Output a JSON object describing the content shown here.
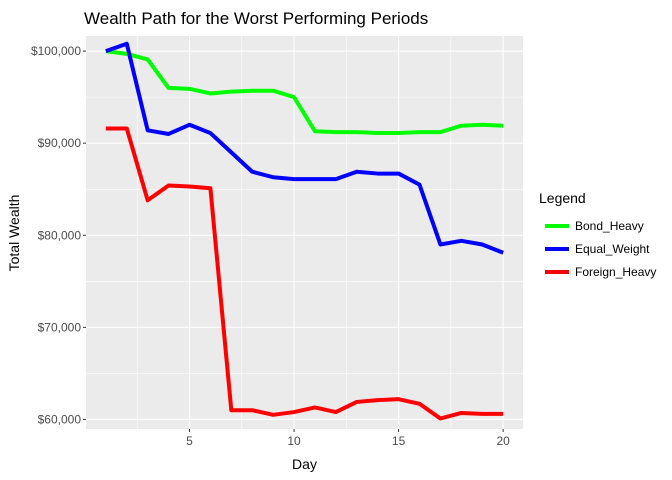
{
  "chart_data": {
    "type": "line",
    "title": "Wealth Path for the Worst Performing Periods",
    "xlabel": "Day",
    "ylabel": "Total Wealth",
    "xlim": [
      0.05,
      20.95
    ],
    "ylim": [
      58960,
      101640
    ],
    "x_ticks": [
      5,
      10,
      15,
      20
    ],
    "x_tick_labels": [
      "5",
      "10",
      "15",
      "20"
    ],
    "y_ticks": [
      60000,
      70000,
      80000,
      90000,
      100000
    ],
    "y_tick_labels": [
      "$60,000",
      "$70,000",
      "$80,000",
      "$90,000",
      "$100,000"
    ],
    "grid": true,
    "panel_background": "#ebebeb",
    "legend": {
      "title": "Legend",
      "position": "right"
    },
    "x": [
      1,
      2,
      3,
      4,
      5,
      6,
      7,
      8,
      9,
      10,
      11,
      12,
      13,
      14,
      15,
      16,
      17,
      18,
      19,
      20
    ],
    "series": [
      {
        "name": "Bond_Heavy",
        "color": "#00ff00",
        "values": [
          100000,
          99700,
          99100,
          96000,
          95900,
          95400,
          95600,
          95700,
          95700,
          95000,
          91300,
          91200,
          91200,
          91100,
          91100,
          91200,
          91200,
          91900,
          92000,
          91900
        ]
      },
      {
        "name": "Equal_Weight",
        "color": "#0000ff",
        "values": [
          100000,
          100800,
          91400,
          91000,
          92000,
          91100,
          89000,
          86900,
          86300,
          86100,
          86100,
          86100,
          86900,
          86700,
          86700,
          85500,
          79000,
          79400,
          79000,
          78100
        ]
      },
      {
        "name": "Foreign_Heavy",
        "color": "#ff0000",
        "values": [
          91600,
          91600,
          83800,
          85400,
          85300,
          85100,
          61000,
          61000,
          60500,
          60800,
          61300,
          60800,
          61900,
          62100,
          62200,
          61700,
          60100,
          60700,
          60600,
          60600
        ]
      }
    ]
  }
}
